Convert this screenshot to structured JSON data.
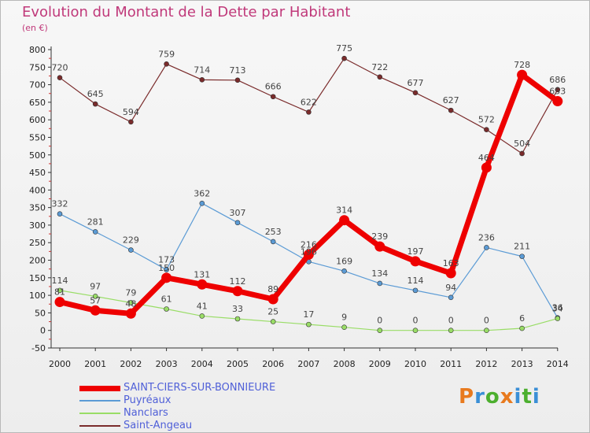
{
  "header": {
    "title": "Evolution du Montant de la Dette par Habitant",
    "subtitle": "(en €)"
  },
  "logo": {
    "text": "Proxiti",
    "colors": [
      "#e87a1e",
      "#3a8fd6",
      "#4caf2e",
      "#e87a1e",
      "#3a8fd6",
      "#4caf2e",
      "#3a8fd6"
    ]
  },
  "chart_data": {
    "type": "line",
    "title": "Evolution du Montant de la Dette par Habitant",
    "ylabel": "(en €)",
    "xlabel": "",
    "x": [
      "2000",
      "2001",
      "2002",
      "2003",
      "2004",
      "2005",
      "2006",
      "2007",
      "2008",
      "2009",
      "2010",
      "2011",
      "2012",
      "2013",
      "2014"
    ],
    "ylim": [
      -50,
      800
    ],
    "yticks": [
      -50,
      0,
      50,
      100,
      150,
      200,
      250,
      300,
      350,
      400,
      450,
      500,
      550,
      600,
      650,
      700,
      750,
      800
    ],
    "grid": false,
    "legend_position": "bottom-left",
    "series": [
      {
        "name": "SAINT-CIERS-SUR-BONNIEURE",
        "color": "#ee0000",
        "values": [
          81,
          57,
          48,
          150,
          131,
          112,
          89,
          216,
          314,
          239,
          197,
          163,
          464,
          728,
          653
        ]
      },
      {
        "name": "Puyréaux",
        "color": "#5b9bd5",
        "values": [
          332,
          281,
          229,
          173,
          362,
          307,
          253,
          196,
          169,
          134,
          114,
          94,
          236,
          211,
          36
        ]
      },
      {
        "name": "Nanclars",
        "color": "#99dd66",
        "values": [
          114,
          97,
          79,
          61,
          41,
          33,
          25,
          17,
          9,
          0,
          0,
          0,
          0,
          6,
          34
        ]
      },
      {
        "name": "Saint-Angeau",
        "color": "#7a2b2b",
        "values": [
          720,
          645,
          594,
          759,
          714,
          713,
          666,
          622,
          775,
          722,
          677,
          627,
          572,
          504,
          686
        ]
      }
    ]
  }
}
